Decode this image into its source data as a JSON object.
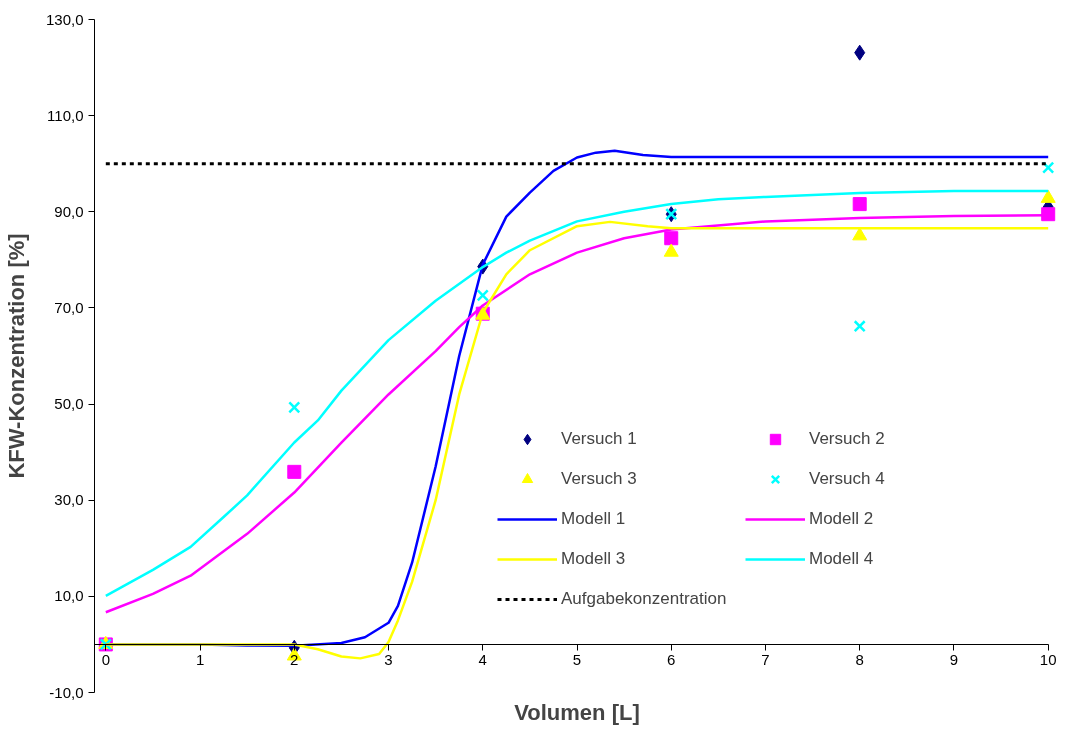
{
  "chart_data": {
    "type": "scatter",
    "xlabel": "Volumen [L]",
    "ylabel": "KFW-Konzentration [%]",
    "xlim": [
      0,
      10
    ],
    "xticks": [
      0,
      1,
      2,
      3,
      4,
      5,
      6,
      7,
      8,
      9,
      10
    ],
    "ylim": [
      -10,
      130
    ],
    "yticks": [
      {
        "value": -10,
        "label": "-10,0"
      },
      {
        "value": 10,
        "label": "10,0"
      },
      {
        "value": 30,
        "label": "30,0"
      },
      {
        "value": 50,
        "label": "50,0"
      },
      {
        "value": 70,
        "label": "70,0"
      },
      {
        "value": 90,
        "label": "90,0"
      },
      {
        "value": 110,
        "label": "110,0"
      },
      {
        "value": 130,
        "label": "130,0"
      }
    ],
    "grid": false,
    "legend": "bottom right",
    "series": [
      {
        "name": "Versuch 1",
        "marker": "diamond",
        "color": "#000080",
        "x": [
          2,
          4,
          6,
          8,
          10
        ],
        "values": [
          -0.7,
          78.6,
          89.5,
          123.1,
          91
        ]
      },
      {
        "name": "Versuch 2",
        "marker": "square",
        "color": "#ff00ff",
        "x": [
          0,
          2,
          4,
          6,
          8,
          10
        ],
        "values": [
          0,
          35.9,
          68.8,
          84.5,
          91.6,
          89.5
        ]
      },
      {
        "name": "Versuch 3",
        "marker": "triangle",
        "color": "#ffff00",
        "x": [
          0,
          2,
          4,
          6,
          8,
          10
        ],
        "values": [
          0,
          -2.4,
          68.5,
          81.6,
          85.0,
          92.8
        ]
      },
      {
        "name": "Versuch 4",
        "marker": "cross",
        "color": "#00ffff",
        "x": [
          0,
          2,
          4,
          6,
          8,
          10
        ],
        "values": [
          0,
          49.3,
          72.6,
          89.5,
          66.2,
          99.2
        ]
      },
      {
        "name": "Modell 1",
        "type": "line",
        "color": "#0000ff",
        "x": [
          0,
          1,
          1.5,
          2,
          2.5,
          2.75,
          3,
          3.1,
          3.25,
          3.5,
          3.75,
          4,
          4.25,
          4.5,
          4.75,
          5,
          5.2,
          5.4,
          5.7,
          6,
          10
        ],
        "values": [
          0,
          0,
          -0.2,
          -0.3,
          0.3,
          1.5,
          4.5,
          8,
          17,
          37,
          60,
          79,
          89,
          94,
          98.5,
          101.3,
          102.3,
          102.7,
          101.8,
          101.4,
          101.4
        ]
      },
      {
        "name": "Modell 2",
        "type": "line",
        "color": "#ff00ff",
        "x": [
          0,
          0.5,
          0.9,
          1.25,
          1.5,
          2,
          2.5,
          3,
          3.5,
          3.75,
          4,
          4.5,
          5,
          5.5,
          6,
          7,
          8,
          9,
          10
        ],
        "values": [
          6.7,
          10.5,
          14.3,
          19.4,
          23,
          31.6,
          42,
          52,
          61,
          66,
          70.5,
          77,
          81.5,
          84.5,
          86.3,
          88,
          88.7,
          89.1,
          89.3
        ]
      },
      {
        "name": "Modell 3",
        "type": "line",
        "color": "#ffff00",
        "x": [
          0,
          2,
          2.25,
          2.5,
          2.7,
          2.9,
          3,
          3.1,
          3.25,
          3.5,
          3.75,
          4,
          4.25,
          4.5,
          5,
          5.35,
          5.75,
          6,
          10
        ],
        "values": [
          0,
          0,
          -1,
          -2.5,
          -2.9,
          -2,
          0.5,
          5,
          13,
          30,
          52,
          69,
          77,
          82,
          87,
          87.9,
          87,
          86.6,
          86.6
        ]
      },
      {
        "name": "Modell 4",
        "type": "line",
        "color": "#00ffff",
        "x": [
          0,
          0.5,
          0.9,
          1.25,
          1.5,
          2,
          2.25,
          2.5,
          3,
          3.5,
          4,
          4.25,
          4.5,
          5,
          5.5,
          6,
          6.5,
          7,
          8,
          9,
          10
        ],
        "values": [
          10.1,
          15.5,
          20.3,
          26.5,
          31,
          42,
          46.6,
          52.8,
          63.3,
          71.5,
          78.5,
          81.5,
          84,
          88,
          90,
          91.6,
          92.6,
          93.1,
          93.9,
          94.3,
          94.3
        ]
      }
    ],
    "ref_lines": [
      {
        "axis": "y",
        "value": 100,
        "label": "Aufgabekonzentration",
        "color": "#000000",
        "line_style": "dashed"
      }
    ]
  }
}
